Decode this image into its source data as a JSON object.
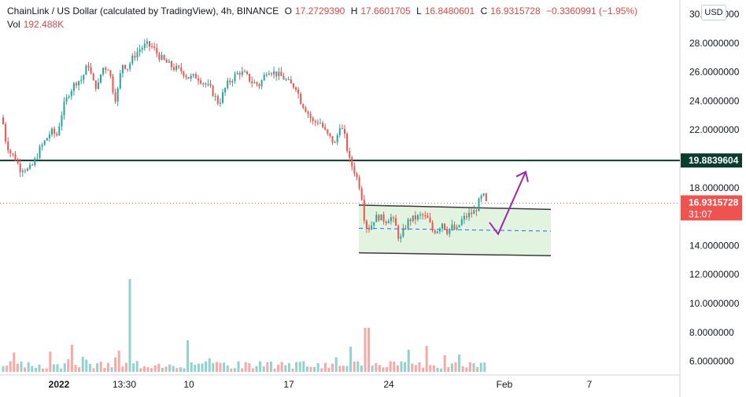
{
  "header": {
    "symbol": "ChainLink / US Dollar (calculated by TradingView), 4h, BINANCE",
    "o_label": "O",
    "o_value": "17.2729390",
    "h_label": "H",
    "h_value": "17.6601705",
    "l_label": "L",
    "l_value": "16.8480601",
    "c_label": "C",
    "c_value": "16.9315728",
    "change": "−0.3360991 (−1.95%)",
    "vol_label": "Vol",
    "vol_value": "192.488K"
  },
  "currency_button": "USD",
  "colors": {
    "up": "#26a69a",
    "down": "#ef5350",
    "hline": "#0b3d2e",
    "channel_fill": "#d8f0d4",
    "arrow": "#9c27b0",
    "midline": "#2962ff"
  },
  "chart_data": {
    "type": "candlestick",
    "timeframe": "4h",
    "y_ticks": [
      "30.0000000",
      "28.0000000",
      "26.0000000",
      "24.0000000",
      "22.0000000",
      "18.0000000",
      "14.0000000",
      "12.0000000",
      "10.0000000",
      "8.0000000",
      "6.0000000"
    ],
    "y_tick_values": [
      30,
      28,
      26,
      24,
      22,
      18,
      14,
      12,
      10,
      8,
      6
    ],
    "x_ticks": [
      "2022",
      "13:30",
      "10",
      "17",
      "24",
      "Feb",
      "7"
    ],
    "horizontal_line": {
      "value": 19.8839604,
      "label": "19.8839604"
    },
    "last_price": {
      "value": 16.9315728,
      "label": "16.9315728",
      "countdown": "31:07"
    },
    "channel": {
      "upper": [
        16.8,
        16.5
      ],
      "lower": [
        13.5,
        13.3
      ],
      "mid": [
        15.2,
        15.0
      ]
    },
    "projection_arrow": [
      15.6,
      14.8,
      19.1
    ],
    "price_anchors": [
      [
        0,
        24.2
      ],
      [
        6,
        21.5
      ],
      [
        12,
        20.5
      ],
      [
        20,
        20.0
      ],
      [
        25,
        19.3
      ],
      [
        30,
        19.4
      ],
      [
        36,
        19.2
      ],
      [
        42,
        19.6
      ],
      [
        50,
        20.6
      ],
      [
        58,
        21.3
      ],
      [
        65,
        21.9
      ],
      [
        72,
        21.6
      ],
      [
        80,
        23.5
      ],
      [
        88,
        24.6
      ],
      [
        96,
        25.3
      ],
      [
        104,
        25.5
      ],
      [
        112,
        26.6
      ],
      [
        118,
        25.3
      ],
      [
        124,
        24.9
      ],
      [
        130,
        26.3
      ],
      [
        138,
        26.3
      ],
      [
        146,
        24.1
      ],
      [
        150,
        24.8
      ],
      [
        155,
        26.6
      ],
      [
        162,
        26.3
      ],
      [
        170,
        27.1
      ],
      [
        178,
        27.6
      ],
      [
        186,
        27.9
      ],
      [
        194,
        27.7
      ],
      [
        202,
        27.1
      ],
      [
        210,
        26.7
      ],
      [
        220,
        26.3
      ],
      [
        230,
        26.1
      ],
      [
        240,
        25.6
      ],
      [
        250,
        25.7
      ],
      [
        258,
        25.3
      ],
      [
        268,
        24.8
      ],
      [
        278,
        23.8
      ],
      [
        288,
        25.1
      ],
      [
        296,
        25.6
      ],
      [
        304,
        26.0
      ],
      [
        312,
        25.8
      ],
      [
        320,
        25.3
      ],
      [
        330,
        25.1
      ],
      [
        340,
        26.2
      ],
      [
        350,
        25.9
      ],
      [
        360,
        25.6
      ],
      [
        370,
        25.1
      ],
      [
        376,
        25.0
      ],
      [
        382,
        24.0
      ],
      [
        390,
        23.3
      ],
      [
        398,
        22.5
      ],
      [
        406,
        22.6
      ],
      [
        414,
        21.8
      ],
      [
        420,
        21.4
      ],
      [
        426,
        21.0
      ],
      [
        432,
        22.4
      ],
      [
        438,
        21.5
      ],
      [
        444,
        19.9
      ],
      [
        450,
        19.2
      ],
      [
        456,
        18.3
      ],
      [
        460,
        17.3
      ],
      [
        464,
        15.4
      ],
      [
        470,
        15.2
      ],
      [
        476,
        15.9
      ],
      [
        482,
        16.0
      ],
      [
        490,
        15.7
      ],
      [
        496,
        16.0
      ],
      [
        502,
        15.5
      ],
      [
        508,
        14.3
      ],
      [
        514,
        15.2
      ],
      [
        520,
        15.8
      ],
      [
        528,
        15.9
      ],
      [
        536,
        16.1
      ],
      [
        544,
        15.8
      ],
      [
        550,
        15.0
      ],
      [
        556,
        15.1
      ],
      [
        562,
        15.6
      ],
      [
        568,
        15.0
      ],
      [
        574,
        15.3
      ],
      [
        580,
        15.0
      ],
      [
        586,
        15.7
      ],
      [
        592,
        16.0
      ],
      [
        598,
        16.2
      ],
      [
        604,
        16.4
      ],
      [
        610,
        17.2
      ],
      [
        614,
        17.5
      ],
      [
        618,
        16.9
      ]
    ],
    "volume_bars_count": 130
  }
}
